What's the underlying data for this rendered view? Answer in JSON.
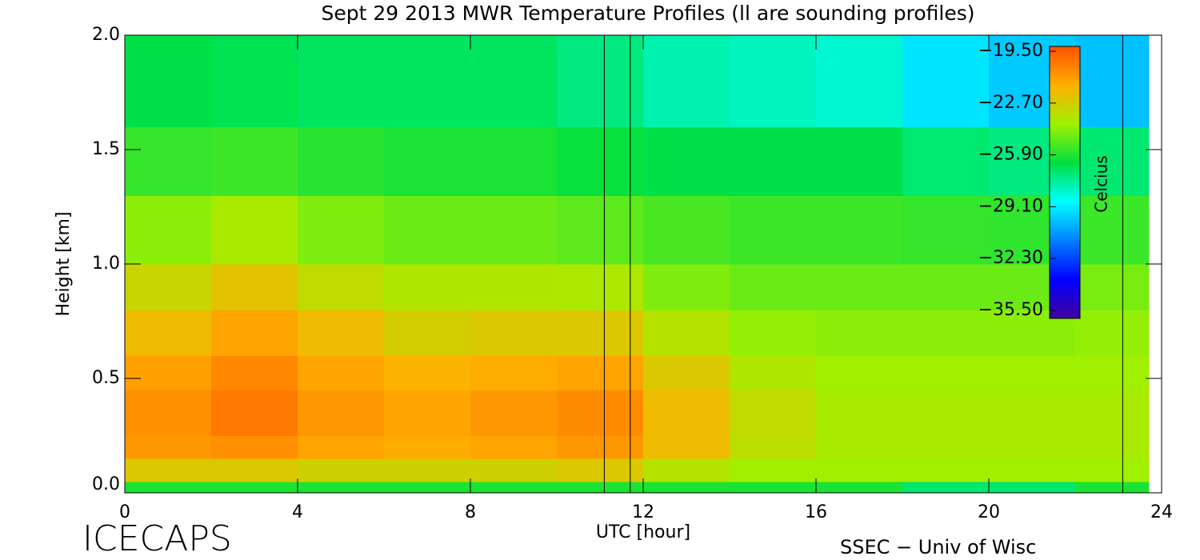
{
  "chart_data": {
    "type": "heatmap",
    "title": "Sept 29 2013 MWR Temperature Profiles (ll are sounding profiles)",
    "x_label": "UTC [hour]",
    "y_label": "Height [km]",
    "colorbar_label": "Celcius",
    "footer_left": "ICECAPS",
    "footer_right": "SSEC − Univ of Wisc",
    "xlim": [
      0,
      24
    ],
    "ylim": [
      0,
      2
    ],
    "xticks": [
      0,
      4,
      8,
      12,
      16,
      20,
      24
    ],
    "yticks": [
      {
        "value": 0,
        "label": "0.0"
      },
      0.5,
      {
        "value": 1,
        "label": "1.0"
      },
      1.5,
      {
        "value": 2,
        "label": "2.0"
      }
    ],
    "x_edges": [
      0,
      2,
      4,
      6,
      8,
      10,
      12,
      14,
      16,
      18,
      20,
      22,
      23.7
    ],
    "y_edges": [
      0,
      0.05,
      0.15,
      0.25,
      0.45,
      0.6,
      0.8,
      1.0,
      1.3,
      1.6,
      2.0
    ],
    "values": [
      [
        -26,
        -26,
        -26,
        -26,
        -26,
        -26,
        -26,
        -26,
        -26,
        -27,
        -27,
        -26
      ],
      [
        -22.5,
        -22.5,
        -22.8,
        -22.8,
        -22.8,
        -22.5,
        -23.5,
        -24,
        -24,
        -24,
        -24,
        -24
      ],
      [
        -21,
        -20.8,
        -21.3,
        -21.5,
        -21.3,
        -21,
        -22,
        -23.3,
        -23.8,
        -23.8,
        -23.8,
        -23.8
      ],
      [
        -20.8,
        -20.2,
        -21,
        -21.3,
        -21,
        -20.7,
        -22,
        -23.2,
        -23.8,
        -23.8,
        -23.8,
        -23.8
      ],
      [
        -21.2,
        -20.6,
        -21.3,
        -21.7,
        -21.5,
        -21.3,
        -22.5,
        -23.6,
        -24,
        -24,
        -24,
        -24
      ],
      [
        -22,
        -21.3,
        -22,
        -22.7,
        -22.5,
        -22.5,
        -23.5,
        -24.2,
        -24.3,
        -24.3,
        -24.3,
        -24.2
      ],
      [
        -23,
        -22.3,
        -23.2,
        -23.6,
        -23.6,
        -23.7,
        -24.5,
        -24.8,
        -24.8,
        -24.8,
        -24.8,
        -24.6
      ],
      [
        -24.3,
        -23.8,
        -24.5,
        -24.8,
        -24.8,
        -25,
        -25.3,
        -25.5,
        -25.5,
        -25.6,
        -25.7,
        -25.5
      ],
      [
        -25.6,
        -25.5,
        -25.8,
        -26,
        -26,
        -26.3,
        -26.5,
        -26.5,
        -26.5,
        -27,
        -27.2,
        -27
      ],
      [
        -26.5,
        -26.6,
        -26.8,
        -26.8,
        -26.8,
        -27.2,
        -27.8,
        -28,
        -28.2,
        -29.3,
        -29.8,
        -30
      ]
    ],
    "sounding_times": [
      11.1,
      11.7,
      23.1
    ],
    "clim": [
      -36,
      -19.2
    ],
    "colormap": [
      "#4000a0",
      "#0000ff",
      "#0080ff",
      "#00ffff",
      "#00e040",
      "#a0f000",
      "#ffb000",
      "#ff5000"
    ],
    "cticks": [
      {
        "value": -19.5,
        "label": "−19.50"
      },
      {
        "value": -22.7,
        "label": "−22.70"
      },
      {
        "value": -25.9,
        "label": "−25.90"
      },
      {
        "value": -29.1,
        "label": "−29.10"
      },
      {
        "value": -32.3,
        "label": "−32.30"
      },
      {
        "value": -35.5,
        "label": "−35.50"
      }
    ]
  }
}
